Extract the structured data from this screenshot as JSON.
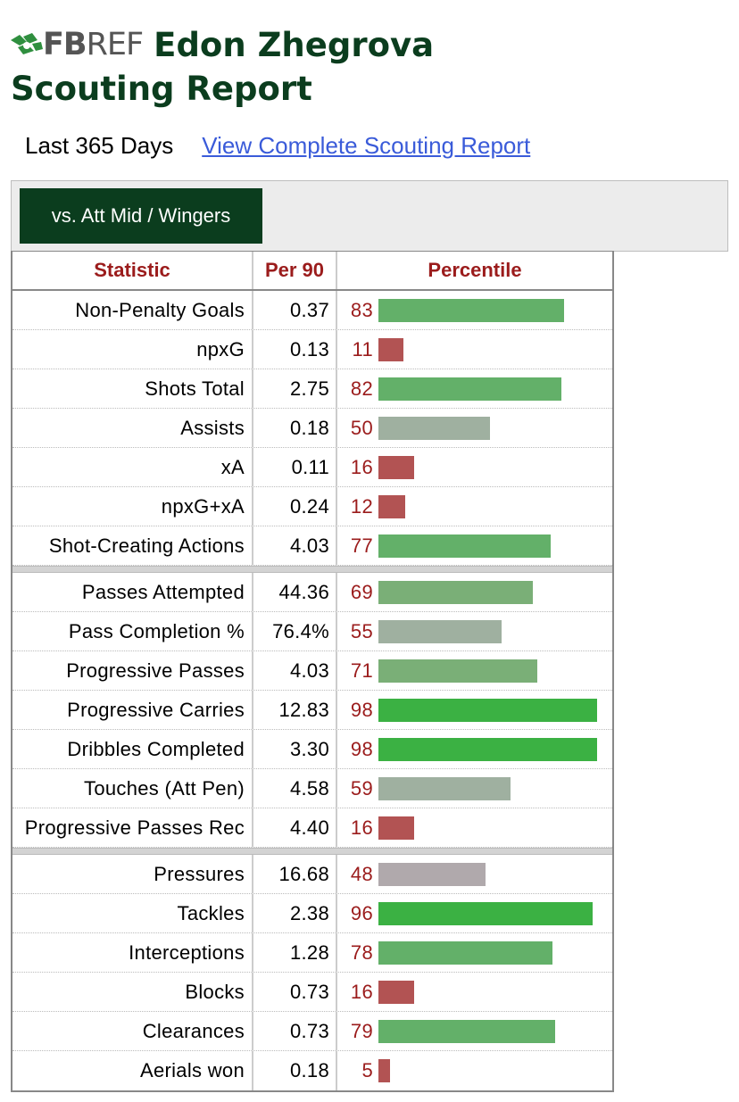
{
  "header": {
    "logo_text_bold": "FB",
    "logo_text_light": "REF",
    "player_name": "Edon Zhegrova",
    "report_title": "Scouting Report",
    "period": "Last 365 Days",
    "link_label": "View Complete Scouting Report"
  },
  "tab": {
    "label": "vs. Att Mid / Wingers"
  },
  "columns": {
    "stat": "Statistic",
    "per90": "Per 90",
    "percentile": "Percentile"
  },
  "colors": {
    "high": "#3bb143",
    "mid": "#a9a9a9",
    "low": "#b25353",
    "brand": "#0b3d1e",
    "accent_text": "#9b1c1c"
  },
  "groups": [
    [
      {
        "stat": "Non-Penalty Goals",
        "per90": "0.37",
        "pct": 83
      },
      {
        "stat": "npxG",
        "per90": "0.13",
        "pct": 11
      },
      {
        "stat": "Shots Total",
        "per90": "2.75",
        "pct": 82
      },
      {
        "stat": "Assists",
        "per90": "0.18",
        "pct": 50
      },
      {
        "stat": "xA",
        "per90": "0.11",
        "pct": 16
      },
      {
        "stat": "npxG+xA",
        "per90": "0.24",
        "pct": 12
      },
      {
        "stat": "Shot-Creating Actions",
        "per90": "4.03",
        "pct": 77
      }
    ],
    [
      {
        "stat": "Passes Attempted",
        "per90": "44.36",
        "pct": 69
      },
      {
        "stat": "Pass Completion %",
        "per90": "76.4%",
        "pct": 55
      },
      {
        "stat": "Progressive Passes",
        "per90": "4.03",
        "pct": 71
      },
      {
        "stat": "Progressive Carries",
        "per90": "12.83",
        "pct": 98
      },
      {
        "stat": "Dribbles Completed",
        "per90": "3.30",
        "pct": 98
      },
      {
        "stat": "Touches (Att Pen)",
        "per90": "4.58",
        "pct": 59
      },
      {
        "stat": "Progressive Passes Rec",
        "per90": "4.40",
        "pct": 16
      }
    ],
    [
      {
        "stat": "Pressures",
        "per90": "16.68",
        "pct": 48
      },
      {
        "stat": "Tackles",
        "per90": "2.38",
        "pct": 96
      },
      {
        "stat": "Interceptions",
        "per90": "1.28",
        "pct": 78
      },
      {
        "stat": "Blocks",
        "per90": "0.73",
        "pct": 16
      },
      {
        "stat": "Clearances",
        "per90": "0.73",
        "pct": 79
      },
      {
        "stat": "Aerials won",
        "per90": "0.18",
        "pct": 5
      }
    ]
  ]
}
